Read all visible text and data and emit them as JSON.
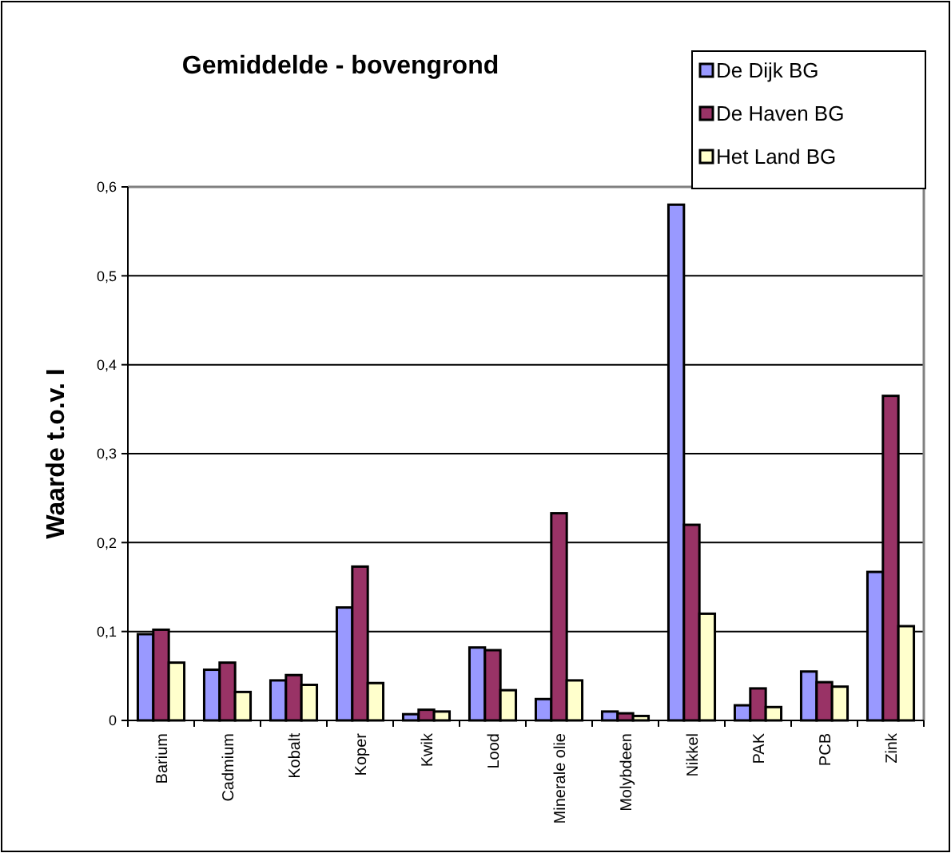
{
  "chart_data": {
    "type": "bar",
    "title": "Gemiddelde - bovengrond",
    "ylabel": "Waarde t.o.v. I",
    "categories": [
      "Barium",
      "Cadmium",
      "Kobalt",
      "Koper",
      "Kwik",
      "Lood",
      "Minerale olie",
      "Molybdeen",
      "Nikkel",
      "PAK",
      "PCB",
      "Zink"
    ],
    "series": [
      {
        "name": "De Dijk BG",
        "color": "#9999ff",
        "values": [
          0.097,
          0.057,
          0.045,
          0.127,
          0.007,
          0.082,
          0.024,
          0.01,
          0.58,
          0.017,
          0.055,
          0.167
        ]
      },
      {
        "name": "De Haven BG",
        "color": "#993366",
        "values": [
          0.102,
          0.065,
          0.051,
          0.173,
          0.012,
          0.079,
          0.233,
          0.008,
          0.22,
          0.036,
          0.043,
          0.365
        ]
      },
      {
        "name": "Het Land BG",
        "color": "#ffffcc",
        "values": [
          0.065,
          0.032,
          0.04,
          0.042,
          0.01,
          0.034,
          0.045,
          0.005,
          0.12,
          0.015,
          0.038,
          0.106
        ]
      }
    ],
    "ylim": [
      0,
      0.6
    ],
    "yticks": [
      0,
      {
        "value": 0.1,
        "label": "0,1"
      },
      {
        "value": 0.2,
        "label": "0,2"
      },
      {
        "value": 0.3,
        "label": "0,3"
      },
      {
        "value": 0.4,
        "label": "0,4"
      },
      {
        "value": 0.5,
        "label": "0,5"
      },
      {
        "value": 0.6,
        "label": "0,6"
      }
    ],
    "grid": "y",
    "legend": "top right"
  }
}
